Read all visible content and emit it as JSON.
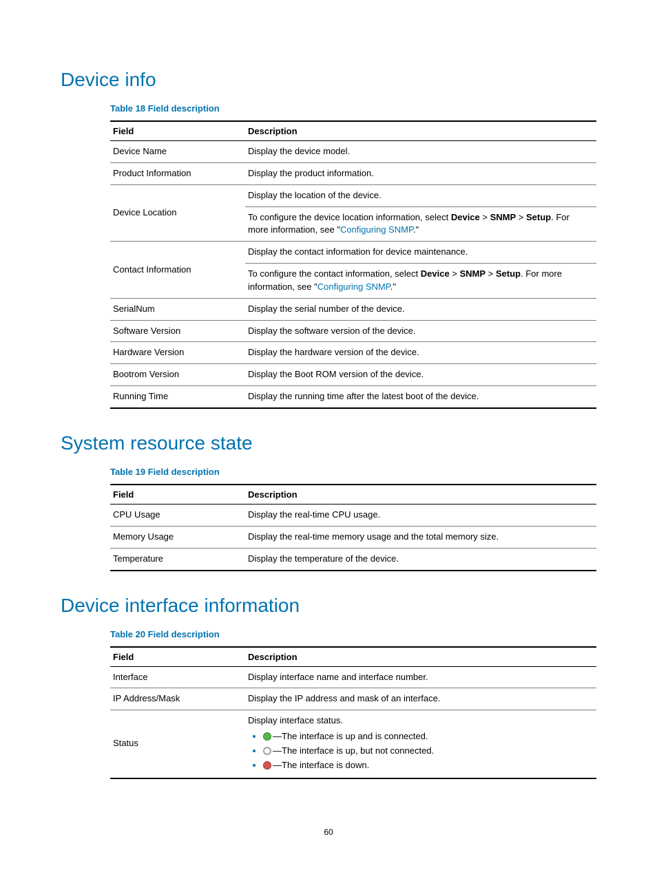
{
  "page_number": "60",
  "sections": {
    "device_info": {
      "heading": "Device info",
      "caption": "Table 18 Field description",
      "headers": {
        "field": "Field",
        "desc": "Description"
      },
      "rows": {
        "r0": {
          "f": "Device Name",
          "d": "Display the device model."
        },
        "r1": {
          "f": "Product Information",
          "d": "Display the product information."
        },
        "r2": {
          "f": "Device Location",
          "d1": "Display the location of the device.",
          "d2a": "To configure the device location information, select ",
          "d2b": "Device",
          "gt1": " > ",
          "d2c": "SNMP",
          "gt2": " > ",
          "d2d": "Setup",
          "d2e": ". For more information, see \"",
          "link": "Configuring SNMP",
          "d2f": ".\""
        },
        "r3": {
          "f": "Contact Information",
          "d1": "Display the contact information for device maintenance.",
          "d2a": "To configure the contact information, select ",
          "d2b": "Device",
          "gt1": " > ",
          "d2c": "SNMP",
          "gt2": " > ",
          "d2d": "Setup",
          "d2e": ". For more information, see \"",
          "link": "Configuring SNMP",
          "d2f": ".\""
        },
        "r4": {
          "f": "SerialNum",
          "d": "Display the serial number of the device."
        },
        "r5": {
          "f": "Software Version",
          "d": "Display the software version of the device."
        },
        "r6": {
          "f": "Hardware Version",
          "d": "Display the hardware version of the device."
        },
        "r7": {
          "f": "Bootrom Version",
          "d": "Display the Boot ROM version of the device."
        },
        "r8": {
          "f": "Running Time",
          "d": "Display the running time after the latest boot of the device."
        }
      }
    },
    "sys_resource": {
      "heading": "System resource state",
      "caption": "Table 19 Field description",
      "headers": {
        "field": "Field",
        "desc": "Description"
      },
      "rows": {
        "r0": {
          "f": "CPU Usage",
          "d": "Display the real-time CPU usage."
        },
        "r1": {
          "f": "Memory Usage",
          "d": "Display the real-time memory usage and the total memory size."
        },
        "r2": {
          "f": "Temperature",
          "d": "Display the temperature of the device."
        }
      }
    },
    "dev_iface": {
      "heading": "Device interface information",
      "caption": "Table 20 Field description",
      "headers": {
        "field": "Field",
        "desc": "Description"
      },
      "rows": {
        "r0": {
          "f": "Interface",
          "d": "Display interface name and interface number."
        },
        "r1": {
          "f": "IP Address/Mask",
          "d": "Display the IP address and mask of an interface."
        },
        "r2": {
          "f": "Status",
          "lead": "Display interface status.",
          "b0": "—The interface is up and is connected.",
          "b1": "—The interface is up, but not connected.",
          "b2": "—The interface is down."
        }
      }
    }
  }
}
